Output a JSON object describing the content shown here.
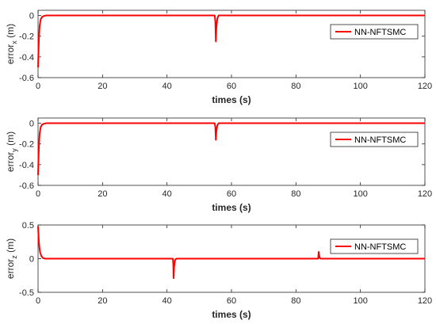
{
  "colors": {
    "series": "#ff0000",
    "axis": "#262626",
    "background": "#ffffff"
  },
  "chart_data": [
    {
      "type": "line",
      "xlabel": "times (s)",
      "ylabel": {
        "main": "error",
        "sub": "x",
        "unit": " (m)"
      },
      "xlim": [
        0,
        120
      ],
      "ylim": [
        -0.6,
        0.05
      ],
      "xticks": [
        "0",
        "20",
        "40",
        "60",
        "80",
        "100",
        "120"
      ],
      "yticks": [
        "0",
        "-0.2",
        "-0.4",
        "-0.6"
      ],
      "legend": "top-right",
      "grid": false,
      "series": [
        {
          "name": "NN-NFTSMC",
          "x": [
            0,
            0.1,
            0.3,
            0.5,
            0.8,
            1.2,
            1.8,
            2.5,
            54.8,
            55.0,
            55.15,
            55.3,
            55.6,
            56.0,
            120
          ],
          "y": [
            -0.5,
            -0.38,
            -0.2,
            -0.1,
            -0.04,
            -0.015,
            -0.005,
            0,
            0,
            -0.06,
            -0.25,
            -0.12,
            -0.03,
            0,
            0
          ]
        }
      ]
    },
    {
      "type": "line",
      "xlabel": "times (s)",
      "ylabel": {
        "main": "error",
        "sub": "y",
        "unit": " (m)"
      },
      "xlim": [
        0,
        120
      ],
      "ylim": [
        -0.6,
        0.05
      ],
      "xticks": [
        "0",
        "20",
        "40",
        "60",
        "80",
        "100",
        "120"
      ],
      "yticks": [
        "0",
        "-0.2",
        "-0.4",
        "-0.6"
      ],
      "legend": "top-right",
      "grid": false,
      "series": [
        {
          "name": "NN-NFTSMC",
          "x": [
            0,
            0.1,
            0.3,
            0.5,
            0.8,
            1.2,
            1.8,
            2.5,
            54.8,
            55.0,
            55.15,
            55.3,
            55.6,
            56.0,
            120
          ],
          "y": [
            -0.5,
            -0.38,
            -0.2,
            -0.1,
            -0.04,
            -0.015,
            -0.005,
            0,
            0,
            -0.04,
            -0.16,
            -0.08,
            -0.02,
            0,
            0
          ]
        }
      ]
    },
    {
      "type": "line",
      "xlabel": "times (s)",
      "ylabel": {
        "main": "error",
        "sub": "z",
        "unit": " (m)"
      },
      "xlim": [
        0,
        120
      ],
      "ylim": [
        -0.5,
        0.5
      ],
      "xticks": [
        "0",
        "20",
        "40",
        "60",
        "80",
        "100",
        "120"
      ],
      "yticks": [
        "0.5",
        "0",
        "-0.5"
      ],
      "legend": "top-right",
      "grid": false,
      "series": [
        {
          "name": "NN-NFTSMC",
          "x": [
            0,
            0.1,
            0.3,
            0.6,
            1.0,
            1.5,
            2.2,
            41.8,
            41.95,
            42.05,
            42.2,
            42.5,
            42.9,
            86.9,
            87.05,
            87.2,
            87.4,
            87.7,
            120
          ],
          "y": [
            0.48,
            0.38,
            0.22,
            0.1,
            0.04,
            0.01,
            0,
            0,
            -0.08,
            -0.29,
            -0.12,
            -0.02,
            0,
            0,
            0.1,
            0.05,
            0.01,
            0,
            0
          ]
        }
      ]
    }
  ]
}
